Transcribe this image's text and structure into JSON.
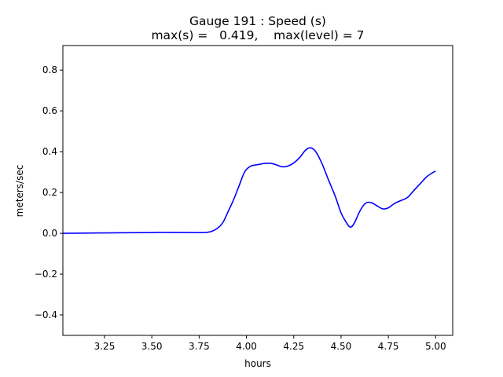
{
  "chart_data": {
    "type": "line",
    "title_line1": "Gauge 191 : Speed (s)",
    "title_line2": "max(s) =   0.419,    max(level) = 7",
    "xlabel": "hours",
    "ylabel": "meters/sec",
    "xlim": [
      3.03,
      5.09
    ],
    "ylim": [
      -0.5,
      0.92
    ],
    "xticks": [
      3.25,
      3.5,
      3.75,
      4.0,
      4.25,
      4.5,
      4.75,
      5.0
    ],
    "xtick_labels": [
      "3.25",
      "3.50",
      "3.75",
      "4.00",
      "4.25",
      "4.50",
      "4.75",
      "5.00"
    ],
    "yticks": [
      -0.4,
      -0.2,
      0.0,
      0.2,
      0.4,
      0.6,
      0.8
    ],
    "ytick_labels": [
      "−0.4",
      "−0.2",
      "0.0",
      "0.2",
      "0.4",
      "0.6",
      "0.8"
    ],
    "grid": false,
    "series": [
      {
        "color": "#0000ff",
        "x": [
          3.03,
          3.25,
          3.5,
          3.55,
          3.75,
          3.8,
          3.83,
          3.86,
          3.88,
          3.9,
          3.93,
          3.96,
          3.99,
          4.02,
          4.05,
          4.08,
          4.1,
          4.13,
          4.16,
          4.19,
          4.22,
          4.25,
          4.28,
          4.31,
          4.33,
          4.35,
          4.37,
          4.4,
          4.43,
          4.47,
          4.5,
          4.53,
          4.55,
          4.57,
          4.6,
          4.63,
          4.66,
          4.69,
          4.72,
          4.75,
          4.78,
          4.81,
          4.85,
          4.88,
          4.92,
          4.95,
          4.98,
          5.0
        ],
        "y": [
          0.0,
          0.002,
          0.004,
          0.005,
          0.004,
          0.006,
          0.015,
          0.035,
          0.06,
          0.1,
          0.16,
          0.23,
          0.3,
          0.328,
          0.335,
          0.34,
          0.343,
          0.343,
          0.335,
          0.326,
          0.33,
          0.345,
          0.37,
          0.405,
          0.418,
          0.415,
          0.395,
          0.34,
          0.27,
          0.18,
          0.1,
          0.05,
          0.03,
          0.05,
          0.11,
          0.148,
          0.15,
          0.135,
          0.12,
          0.125,
          0.145,
          0.158,
          0.175,
          0.205,
          0.245,
          0.275,
          0.295,
          0.305
        ]
      }
    ]
  }
}
